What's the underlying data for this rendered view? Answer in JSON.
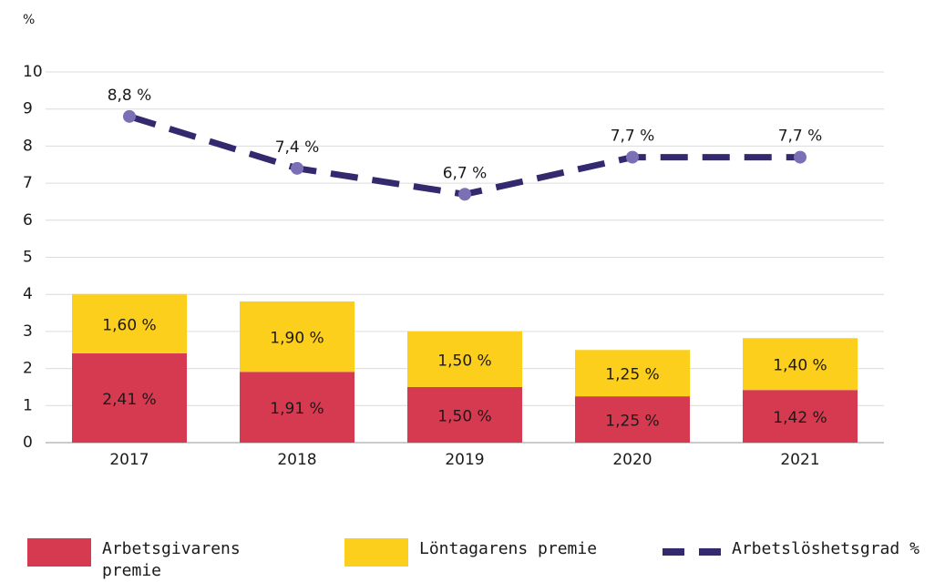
{
  "chart_data": {
    "type": "bar",
    "stacked": true,
    "y_unit_label": "%",
    "categories": [
      "2017",
      "2018",
      "2019",
      "2020",
      "2021"
    ],
    "ylim": [
      0,
      10
    ],
    "yticks": [
      0,
      1,
      2,
      3,
      4,
      5,
      6,
      7,
      8,
      9,
      10
    ],
    "grid": true,
    "legend": "bottom",
    "series": [
      {
        "name": "Arbetsgivarens premie",
        "type": "bar",
        "color": "#d63a50",
        "values": [
          2.41,
          1.91,
          1.5,
          1.25,
          1.42
        ],
        "value_labels": [
          "2,41 %",
          "1,91 %",
          "1,50 %",
          "1,25 %",
          "1,42 %"
        ]
      },
      {
        "name": "Löntagarens premie",
        "type": "bar",
        "color": "#fccf1c",
        "values": [
          1.6,
          1.9,
          1.5,
          1.25,
          1.4
        ],
        "value_labels": [
          "1,60 %",
          "1,90 %",
          "1,50 %",
          "1,25 %",
          "1,40 %"
        ]
      },
      {
        "name": "Arbetslöshetsgrad %",
        "type": "line",
        "color": "#33296e",
        "marker_color": "#7b70b5",
        "values": [
          8.8,
          7.4,
          6.7,
          7.7,
          7.7
        ],
        "value_labels": [
          "8,8 %",
          "7,4 %",
          "6,7 %",
          "7,7 %",
          "7,7 %"
        ]
      }
    ]
  }
}
